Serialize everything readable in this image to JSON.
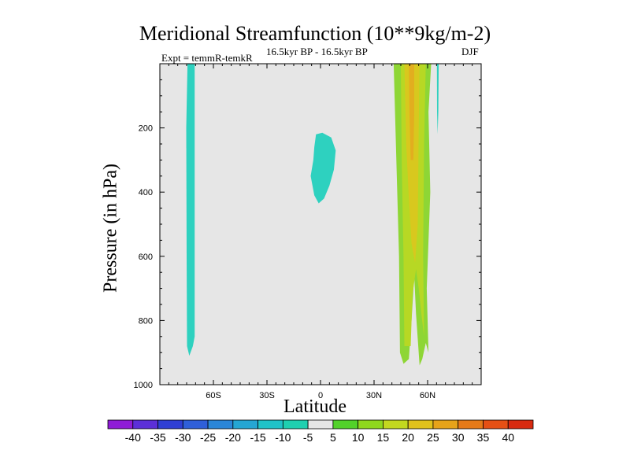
{
  "chart_data": {
    "type": "contour",
    "title": "Meridional Streamfunction (10**9kg/m-2)",
    "subtitle_left": "Expt = temmR-temkR",
    "subtitle_center": "16.5kyr BP - 16.5kyr BP",
    "subtitle_right": "DJF",
    "xlabel": "Latitude",
    "ylabel": "Pressure (in hPa)",
    "xlim": [
      -90,
      90
    ],
    "ylim": [
      0,
      1000
    ],
    "y_inverted": true,
    "x_ticks": [
      {
        "value": -60,
        "label": "60S"
      },
      {
        "value": -30,
        "label": "30S"
      },
      {
        "value": 0,
        "label": "0"
      },
      {
        "value": 30,
        "label": "30N"
      },
      {
        "value": 60,
        "label": "60N"
      }
    ],
    "y_ticks": [
      {
        "value": 200,
        "label": "200"
      },
      {
        "value": 400,
        "label": "400"
      },
      {
        "value": 600,
        "label": "600"
      },
      {
        "value": 800,
        "label": "800"
      },
      {
        "value": 1000,
        "label": "1000"
      }
    ],
    "background_color": "#e6e6e6",
    "colorbar": {
      "labels": [
        "-40",
        "-35",
        "-30",
        "-25",
        "-20",
        "-15",
        "-10",
        "-5",
        "5",
        "10",
        "15",
        "20",
        "25",
        "30",
        "35",
        "40"
      ],
      "colors": [
        "#8f1cd6",
        "#5c2fd8",
        "#2f3fd4",
        "#2f5fd9",
        "#2b86d8",
        "#25a6d3",
        "#20c3c8",
        "#1fd0b0",
        "#e6e6e6",
        "#52d22a",
        "#8fd81e",
        "#c3d820",
        "#e0c21c",
        "#e6a31a",
        "#e67a18",
        "#e65014",
        "#d82a10"
      ]
    },
    "regions": [
      {
        "name": "southern-negative-cell",
        "level": "-10",
        "color": "#2ed1bf",
        "outline": [
          [
            -74.5,
            0
          ],
          [
            -70.5,
            0
          ],
          [
            -70.5,
            850
          ],
          [
            -71.5,
            880
          ],
          [
            -73.5,
            910
          ],
          [
            -74.8,
            880
          ],
          [
            -75.0,
            600
          ],
          [
            -75.2,
            200
          ]
        ]
      },
      {
        "name": "equatorial-negative-cell",
        "level": "-10",
        "color": "#2ed1bf",
        "outline": [
          [
            -2.5,
            220
          ],
          [
            1.0,
            215
          ],
          [
            6.0,
            230
          ],
          [
            8.5,
            270
          ],
          [
            7.5,
            330
          ],
          [
            5.0,
            380
          ],
          [
            2.0,
            420
          ],
          [
            -1.0,
            435
          ],
          [
            -3.5,
            410
          ],
          [
            -5.5,
            350
          ],
          [
            -4.0,
            300
          ],
          [
            -3.5,
            260
          ]
        ]
      },
      {
        "name": "northern-positive-outer",
        "level": "5",
        "color": "#8ed635",
        "outline": [
          [
            41.0,
            0
          ],
          [
            62.0,
            0
          ],
          [
            60.5,
            150
          ],
          [
            61.5,
            400
          ],
          [
            59.5,
            700
          ],
          [
            60.5,
            900
          ],
          [
            59.0,
            870
          ],
          [
            57.0,
            920
          ],
          [
            55.5,
            940
          ],
          [
            53.5,
            780
          ],
          [
            52.5,
            660
          ],
          [
            51.0,
            800
          ],
          [
            49.5,
            920
          ],
          [
            46.5,
            935
          ],
          [
            44.5,
            900
          ],
          [
            44.0,
            600
          ],
          [
            42.5,
            300
          ]
        ]
      },
      {
        "name": "northern-positive-band",
        "level": "10",
        "color": "#b7d824",
        "outline": [
          [
            45.0,
            0
          ],
          [
            59.0,
            0
          ],
          [
            58.0,
            250
          ],
          [
            57.5,
            600
          ],
          [
            58.0,
            850
          ],
          [
            56.5,
            780
          ],
          [
            55.0,
            700
          ],
          [
            53.5,
            640
          ],
          [
            51.5,
            720
          ],
          [
            50.5,
            880
          ],
          [
            47.0,
            880
          ],
          [
            46.5,
            600
          ],
          [
            45.5,
            300
          ]
        ]
      },
      {
        "name": "northern-positive-core",
        "level": "15",
        "color": "#d8c81e",
        "outline": [
          [
            47.0,
            0
          ],
          [
            55.5,
            0
          ],
          [
            55.0,
            200
          ],
          [
            54.5,
            500
          ],
          [
            53.0,
            620
          ],
          [
            51.0,
            560
          ],
          [
            49.5,
            420
          ],
          [
            48.0,
            250
          ]
        ]
      },
      {
        "name": "northern-positive-peak",
        "level": "20",
        "color": "#e2ae1f",
        "outline": [
          [
            49.5,
            0
          ],
          [
            52.5,
            0
          ],
          [
            52.5,
            150
          ],
          [
            52.0,
            300
          ],
          [
            50.5,
            300
          ],
          [
            49.8,
            150
          ]
        ]
      },
      {
        "name": "polar-thin-cell",
        "level": "-10",
        "color": "#2ed1bf",
        "outline": [
          [
            65.2,
            0
          ],
          [
            66.2,
            0
          ],
          [
            66.0,
            150
          ],
          [
            65.6,
            220
          ],
          [
            65.3,
            150
          ]
        ]
      }
    ]
  }
}
